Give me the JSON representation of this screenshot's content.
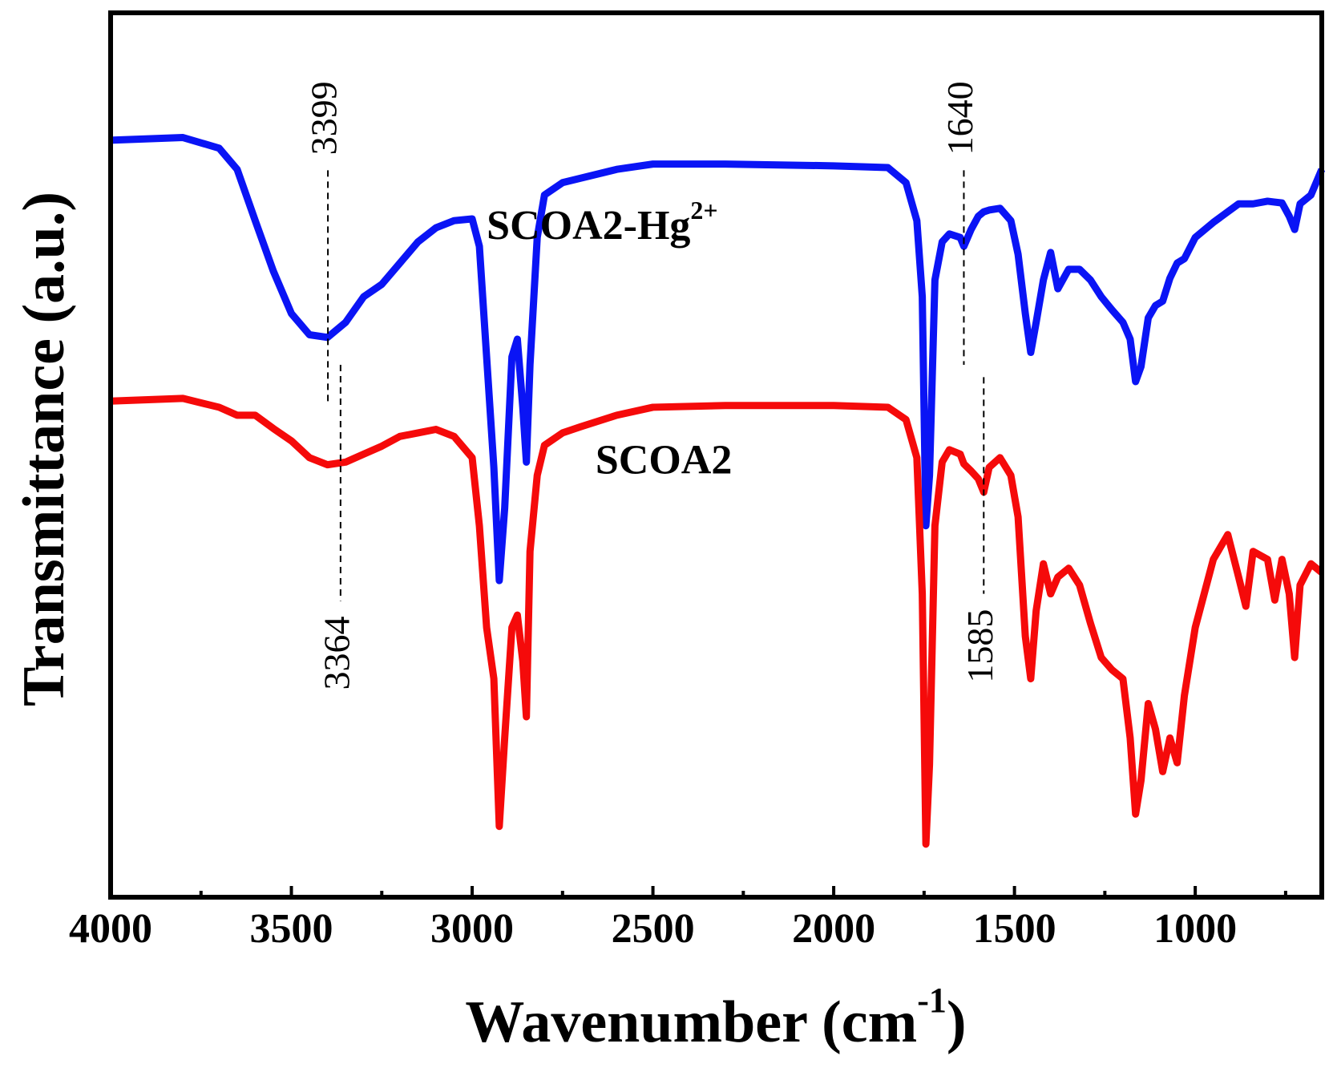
{
  "chart_data": {
    "type": "line",
    "xlabel": {
      "text": "Wavenumber (cm",
      "sup": "-1",
      "end": ")"
    },
    "ylabel": "Transmittance (a.u.)",
    "xlim": [
      4000,
      650
    ],
    "ylim": [
      0,
      100
    ],
    "xticks": [
      4000,
      3500,
      3000,
      2500,
      2000,
      1500,
      1000
    ],
    "xminorticks": [
      3750,
      3250,
      2750,
      2250,
      1750,
      1250,
      750
    ],
    "x": [
      4000,
      3800,
      3700,
      3650,
      3600,
      3550,
      3500,
      3450,
      3400,
      3350,
      3300,
      3250,
      3200,
      3150,
      3100,
      3050,
      3000,
      2980,
      2960,
      2940,
      2925,
      2910,
      2890,
      2875,
      2860,
      2850,
      2840,
      2820,
      2800,
      2750,
      2700,
      2600,
      2500,
      2300,
      2000,
      1850,
      1800,
      1770,
      1755,
      1745,
      1735,
      1720,
      1700,
      1680,
      1650,
      1640,
      1620,
      1600,
      1585,
      1570,
      1540,
      1510,
      1490,
      1470,
      1455,
      1440,
      1420,
      1400,
      1380,
      1350,
      1320,
      1290,
      1260,
      1230,
      1200,
      1180,
      1165,
      1150,
      1130,
      1110,
      1090,
      1070,
      1050,
      1030,
      1000,
      950,
      910,
      880,
      860,
      840,
      800,
      780,
      760,
      740,
      725,
      710,
      680,
      650
    ],
    "series": [
      {
        "name": "SCOA2-Hg",
        "sup": "2+",
        "color": "#0a14f5",
        "label_at": [
          2640,
          75.5
        ],
        "values": [
          85.6,
          85.9,
          84.7,
          82.3,
          76.5,
          70.8,
          66,
          63.6,
          63.3,
          65,
          67.9,
          69.3,
          71.7,
          74.1,
          75.7,
          76.5,
          76.7,
          73.6,
          61.1,
          48.6,
          35.8,
          44,
          61.1,
          63.1,
          55.4,
          49.2,
          60.2,
          74.6,
          79.4,
          80.8,
          81.3,
          82.3,
          82.9,
          82.9,
          82.7,
          82.5,
          80.8,
          76.5,
          67.9,
          42,
          47.7,
          69.8,
          74.1,
          75,
          74.6,
          73.6,
          75.5,
          77,
          77.5,
          77.7,
          77.9,
          76.5,
          72.7,
          66,
          61.6,
          65,
          69.8,
          72.9,
          68.8,
          71,
          71,
          69.8,
          67.9,
          66.4,
          65,
          63.1,
          58.3,
          60,
          65.5,
          66.9,
          67.4,
          70,
          71.7,
          72.2,
          74.6,
          76.3,
          77.5,
          78.4,
          78.4,
          78.4,
          78.7,
          78.6,
          78.5,
          77,
          75.5,
          78.4,
          79.4,
          82.3
        ]
      },
      {
        "name": "SCOA2",
        "color": "#f50a0a",
        "label_at": [
          2470,
          49
        ],
        "values": [
          56.1,
          56.4,
          55.4,
          54.5,
          54.5,
          53,
          51.6,
          49.7,
          48.9,
          49.2,
          50.1,
          51,
          52.1,
          52.5,
          52.9,
          52.1,
          49.7,
          42,
          30.5,
          24.7,
          8,
          18,
          30.5,
          31.9,
          26.7,
          20.4,
          39.1,
          47.7,
          51.1,
          52.5,
          53.2,
          54.5,
          55.4,
          55.6,
          55.6,
          55.4,
          54,
          49.7,
          34.3,
          6,
          15,
          42,
          49.2,
          50.6,
          50.1,
          49,
          48.2,
          47.3,
          45.8,
          48.6,
          49.7,
          47.7,
          43,
          29.5,
          24.7,
          32.4,
          37.7,
          34.3,
          36.2,
          37.2,
          35.3,
          31,
          27.1,
          25.7,
          24.7,
          18,
          9.4,
          13.2,
          21.9,
          19,
          14.2,
          18,
          15.2,
          22.8,
          30.5,
          38.2,
          41,
          36.2,
          32.9,
          39.1,
          38.2,
          33.6,
          38.2,
          34.3,
          27.1,
          35.3,
          37.7,
          36.7
        ]
      }
    ],
    "annotations": [
      {
        "text": "3399",
        "x": 3399,
        "side": "top",
        "line": [
          82.2,
          56
        ]
      },
      {
        "text": "1640",
        "x": 1640,
        "side": "top",
        "line": [
          82.2,
          60.2
        ]
      },
      {
        "text": "3364",
        "x": 3364,
        "side": "bottom",
        "line": [
          60.2,
          33.5
        ]
      },
      {
        "text": "1585",
        "x": 1585,
        "side": "bottom",
        "line": [
          58.8,
          34.3
        ]
      }
    ]
  }
}
